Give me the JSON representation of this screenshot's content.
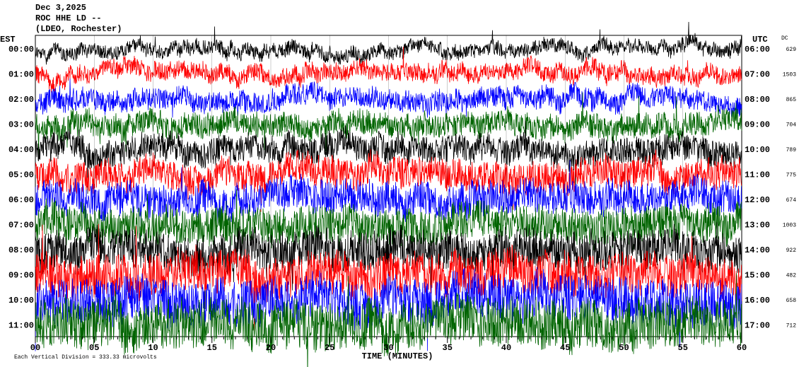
{
  "chart_data": {
    "type": "helicorder",
    "title_lines": [
      "Dec 3,2025",
      "ROC HHE LD --",
      "(LDEO, Rochester)"
    ],
    "left_header": "EST",
    "right_header": "UTC",
    "dc_header": "DC",
    "xlabel": "TIME (MINUTES)",
    "footnote": "Each Vertical Division =  333.33 microvolts",
    "xlim": [
      0,
      60
    ],
    "xticks": [
      {
        "value": 0,
        "label": "00"
      },
      {
        "value": 5,
        "label": "05"
      },
      10,
      15,
      20,
      25,
      30,
      35,
      40,
      45,
      50,
      55,
      60
    ],
    "rows": [
      {
        "est": "00:00",
        "utc": "06:00",
        "dc": 629,
        "color": "#000000"
      },
      {
        "est": "01:00",
        "utc": "07:00",
        "dc": 1503,
        "color": "#ff0000"
      },
      {
        "est": "02:00",
        "utc": "08:00",
        "dc": 865,
        "color": "#0000ff"
      },
      {
        "est": "03:00",
        "utc": "09:00",
        "dc": 704,
        "color": "#006400"
      },
      {
        "est": "04:00",
        "utc": "10:00",
        "dc": 789,
        "color": "#000000"
      },
      {
        "est": "05:00",
        "utc": "11:00",
        "dc": 775,
        "color": "#ff0000"
      },
      {
        "est": "06:00",
        "utc": "12:00",
        "dc": 674,
        "color": "#0000ff"
      },
      {
        "est": "07:00",
        "utc": "13:00",
        "dc": 1003,
        "color": "#006400"
      },
      {
        "est": "08:00",
        "utc": "14:00",
        "dc": 922,
        "color": "#000000"
      },
      {
        "est": "09:00",
        "utc": "15:00",
        "dc": 482,
        "color": "#ff0000"
      },
      {
        "est": "10:00",
        "utc": "16:00",
        "dc": 658,
        "color": "#0000ff"
      },
      {
        "est": "11:00",
        "utc": "17:00",
        "dc": 712,
        "color": "#006400"
      }
    ]
  }
}
